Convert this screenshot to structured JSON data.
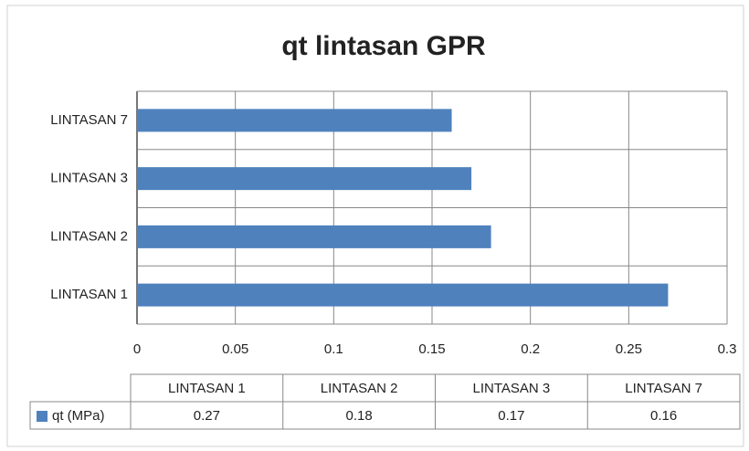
{
  "chart_data": {
    "type": "barh",
    "title": "qt lintasan GPR",
    "categories": [
      "LINTASAN 1",
      "LINTASAN 2",
      "LINTASAN 3",
      "LINTASAN 7"
    ],
    "series": [
      {
        "name": "qt (MPa)",
        "color": "#4f81bd",
        "values": [
          0.27,
          0.18,
          0.17,
          0.16
        ]
      }
    ],
    "xlim": [
      0,
      0.3
    ],
    "xticks": [
      0,
      0.05,
      0.1,
      0.15,
      0.2,
      0.25,
      0.3
    ],
    "grid": true,
    "data_table": true
  }
}
